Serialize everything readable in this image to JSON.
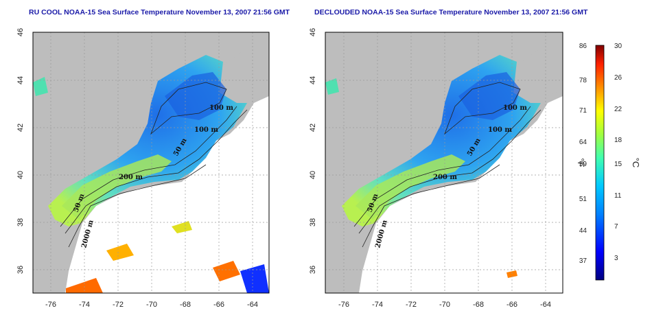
{
  "titles": {
    "left": "RU COOL NOAA-15 Sea Surface Temperature November 13, 2007 21:56 GMT",
    "right": "DECLOUDED NOAA-15 Sea Surface Temperature November 13, 2007 21:56 GMT"
  },
  "lon_ticks": [
    "-76",
    "-74",
    "-72",
    "-70",
    "-68",
    "-66",
    "-64"
  ],
  "lat_ticks": [
    "46",
    "44",
    "42",
    "40",
    "38",
    "36"
  ],
  "contour_labels": [
    "100 m",
    "100 m",
    "50 m",
    "200 m",
    "50 m",
    "2000 m"
  ],
  "colorbar": {
    "fahrenheit_ticks": [
      "86",
      "78",
      "71",
      "64",
      "59",
      "51",
      "44",
      "37"
    ],
    "celsius_ticks": [
      "30",
      "26",
      "22",
      "18",
      "15",
      "11",
      "7",
      "3"
    ],
    "unit_f": "°F",
    "unit_c": "°C"
  },
  "colors": {
    "land": "#bdbdbd",
    "cloud": "#ffffff",
    "title": "#1a1aa8"
  }
}
